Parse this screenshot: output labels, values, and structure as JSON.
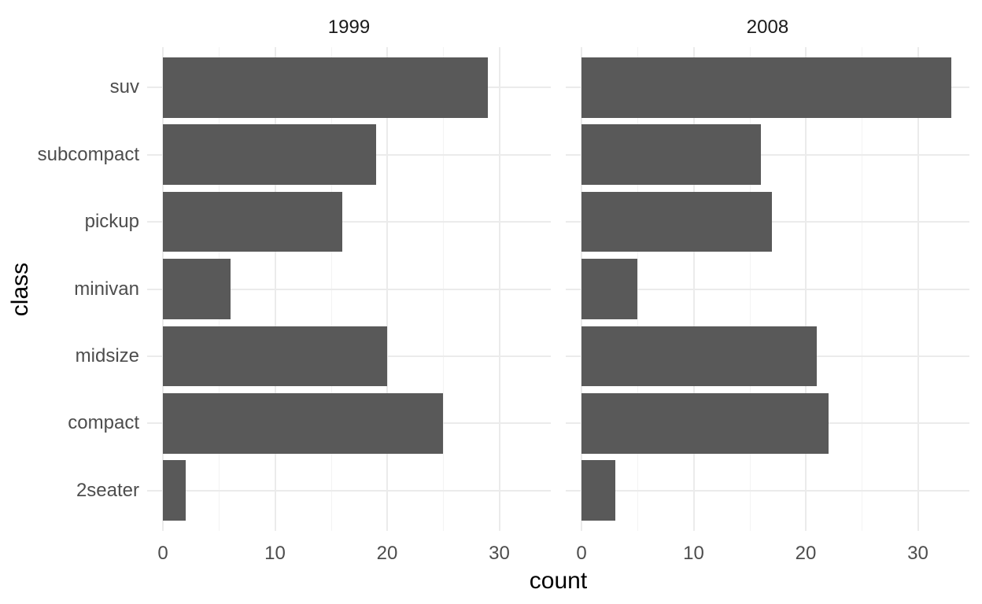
{
  "chart_data": {
    "type": "bar",
    "orientation": "horizontal",
    "facets": [
      "1999",
      "2008"
    ],
    "categories": [
      "suv",
      "subcompact",
      "pickup",
      "minivan",
      "midsize",
      "compact",
      "2seater"
    ],
    "series": [
      {
        "name": "1999",
        "values": [
          29,
          19,
          16,
          6,
          20,
          25,
          2
        ]
      },
      {
        "name": "2008",
        "values": [
          33,
          16,
          17,
          5,
          21,
          22,
          3
        ]
      }
    ],
    "xlabel": "count",
    "ylabel": "class",
    "x_ticks": [
      0,
      10,
      20,
      30
    ],
    "x_minor_gridlines": [
      5,
      15,
      25
    ],
    "xlim": [
      0,
      35
    ],
    "grid": "major and minor vertical gridlines; major horizontal gridlines at category centers; no axis lines; white background",
    "legend_position": "none",
    "colors": {
      "bar": "#595959",
      "grid_major": "#ebebeb",
      "grid_minor": "#f3f3f3",
      "axis_text": "#4d4d4d",
      "axis_title": "#000000",
      "strip_text": "#1a1a1a",
      "background": "#ffffff"
    }
  }
}
